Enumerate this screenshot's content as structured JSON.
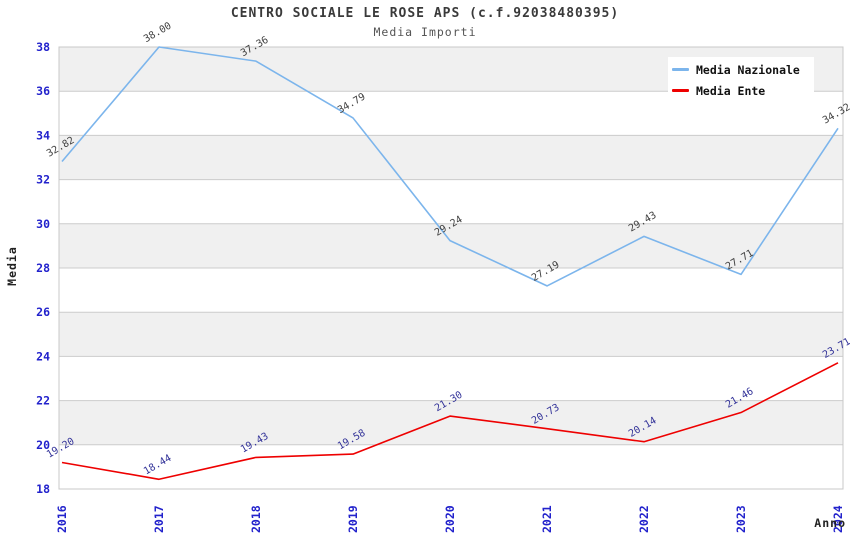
{
  "header": {
    "title": "CENTRO SOCIALE LE ROSE APS (c.f.92038480395)",
    "subtitle": "Media Importi"
  },
  "chart_data": {
    "type": "line",
    "title": "CENTRO SOCIALE LE ROSE APS (c.f.92038480395)",
    "subtitle": "Media Importi",
    "xlabel": "Anno",
    "ylabel": "Media",
    "categories": [
      "2016",
      "2017",
      "2018",
      "2019",
      "2020",
      "2021",
      "2022",
      "2023",
      "2024"
    ],
    "ylim": [
      18,
      38
    ],
    "ytick_step": 2,
    "grid": true,
    "band_fill": "alternating",
    "legend_position": "top-right",
    "series": [
      {
        "name": "Media Nazionale",
        "color": "#7cb5ec",
        "label_color": "#3f3f3f",
        "values": [
          32.82,
          38.0,
          37.36,
          34.79,
          29.24,
          27.19,
          29.43,
          27.71,
          34.32
        ]
      },
      {
        "name": "Media Ente",
        "color": "#ee0000",
        "label_color": "#333399",
        "values": [
          19.2,
          18.44,
          19.43,
          19.58,
          21.3,
          20.73,
          20.14,
          21.46,
          23.71
        ]
      }
    ]
  },
  "styles": {
    "tick_color": "#2222cc",
    "band_color": "#f0f0f0",
    "grid_color": "#cccccc",
    "frame_color": "#c8c8c8",
    "background": "#ffffff"
  }
}
